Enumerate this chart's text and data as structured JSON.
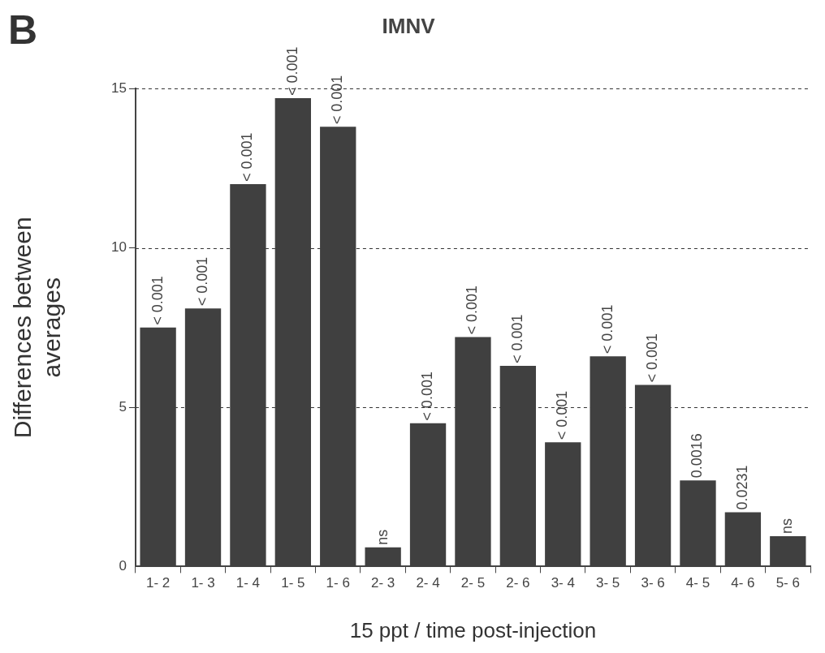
{
  "chart_data": {
    "type": "bar",
    "title": "IMNV",
    "xlabel": "15 ppt / time post-injection",
    "ylabel": "Differences between averages",
    "annotations": [
      "B",
      {
        "text": "< 0.001",
        "x": "1- 2",
        "y": 7.5
      },
      {
        "text": "< 0.001",
        "x": "1- 3",
        "y": 8.1
      },
      {
        "text": "< 0.001",
        "x": "1- 4",
        "y": 12.0
      },
      {
        "text": "< 0.001",
        "x": "1- 5",
        "y": 14.7
      },
      {
        "text": "< 0.001",
        "x": "1- 6",
        "y": 13.8
      },
      {
        "text": "ns",
        "x": "2- 3",
        "y": 0.6
      },
      {
        "text": "< 0.001",
        "x": "2- 4",
        "y": 4.5
      },
      {
        "text": "< 0.001",
        "x": "2- 5",
        "y": 7.2
      },
      {
        "text": "< 0.001",
        "x": "2- 6",
        "y": 6.3
      },
      {
        "text": "< 0.001",
        "x": "3- 4",
        "y": 3.9
      },
      {
        "text": "< 0.001",
        "x": "3- 5",
        "y": 6.6
      },
      {
        "text": "< 0.001",
        "x": "3- 6",
        "y": 5.7
      },
      {
        "text": "0.0016",
        "x": "4- 5",
        "y": 2.7
      },
      {
        "text": "0.0231",
        "x": "4- 6",
        "y": 1.7
      },
      {
        "text": "ns",
        "x": "5- 6",
        "y": 0.95
      }
    ],
    "categories": [
      "1- 2",
      "1- 3",
      "1- 4",
      "1- 5",
      "1- 6",
      "2- 3",
      "2- 4",
      "2- 5",
      "2- 6",
      "3- 4",
      "3- 5",
      "3- 6",
      "4- 5",
      "4- 6",
      "5- 6"
    ],
    "values": [
      7.5,
      8.1,
      12.0,
      14.7,
      13.8,
      0.6,
      4.5,
      7.2,
      6.3,
      3.9,
      6.6,
      5.7,
      2.7,
      1.7,
      0.95
    ],
    "color": "#404040",
    "ylim": [
      0,
      15
    ],
    "yticks": [
      0,
      5,
      10,
      15
    ],
    "grid": "y",
    "legend": false
  }
}
